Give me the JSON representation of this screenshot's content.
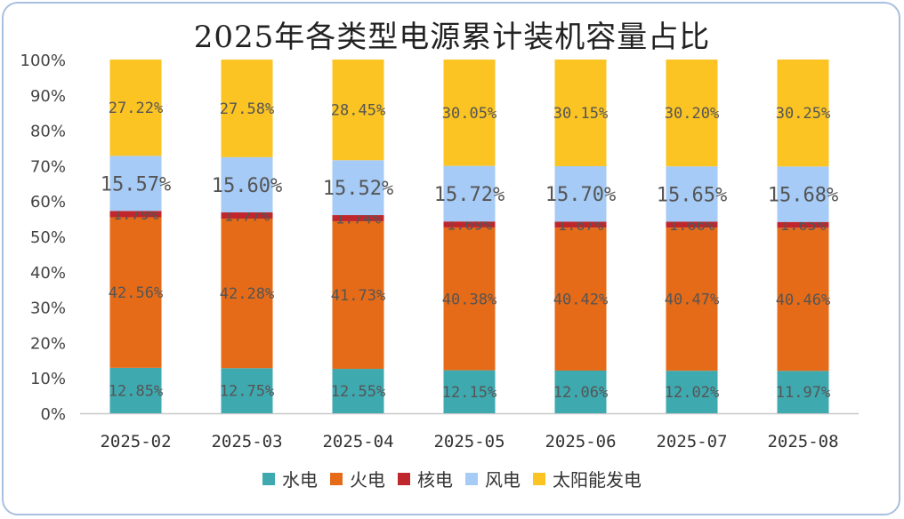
{
  "chart_data": {
    "type": "bar",
    "stacked": true,
    "title": "2025年各类型电源累计装机容量占比",
    "categories": [
      "2025-02",
      "2025-03",
      "2025-04",
      "2025-05",
      "2025-06",
      "2025-07",
      "2025-08"
    ],
    "ylim": [
      0,
      100
    ],
    "yticks": [
      "0%",
      "10%",
      "20%",
      "30%",
      "40%",
      "50%",
      "60%",
      "70%",
      "80%",
      "90%",
      "100%"
    ],
    "grid": false,
    "legend_position": "bottom",
    "series": [
      {
        "name": "水电",
        "color": "#3fa9b0",
        "values": [
          12.85,
          12.75,
          12.55,
          12.15,
          12.06,
          12.02,
          11.97
        ]
      },
      {
        "name": "火电",
        "color": "#e56b18",
        "values": [
          42.56,
          42.28,
          41.73,
          40.38,
          40.42,
          40.47,
          40.46
        ]
      },
      {
        "name": "核电",
        "color": "#c0272d",
        "values": [
          1.79,
          1.77,
          1.74,
          1.69,
          1.67,
          1.66,
          1.65
        ]
      },
      {
        "name": "风电",
        "color": "#a6cbf6",
        "values": [
          15.57,
          15.6,
          15.52,
          15.72,
          15.7,
          15.65,
          15.68
        ]
      },
      {
        "name": "太阳能发电",
        "color": "#fbc423",
        "values": [
          27.22,
          27.58,
          28.45,
          30.05,
          30.15,
          30.2,
          30.25
        ]
      }
    ]
  }
}
